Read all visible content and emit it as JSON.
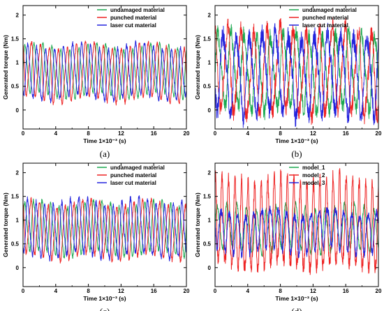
{
  "chart_data": [
    {
      "type": "line",
      "panel_label": "(a)",
      "xlabel": "Time 1×10⁻³ (s)",
      "ylabel": "Generated torque (Nm)",
      "xlim": [
        0,
        20
      ],
      "ylim": [
        -0.4,
        2.2
      ],
      "xticks": [
        0,
        4,
        8,
        12,
        16,
        20
      ],
      "yticks": [
        0,
        0.5,
        1,
        1.5,
        2
      ],
      "xtick_labels": [
        "0",
        "4",
        "8",
        "12",
        "16",
        "20"
      ],
      "ytick_labels": [
        "0",
        "0.5",
        "1",
        "1.5",
        "2"
      ],
      "legend_position": "top-right",
      "grid": false,
      "series": [
        {
          "name": "undamaged material",
          "color": "#1aa84f",
          "mean": 0.82,
          "amplitude": 0.5,
          "period": 1.1,
          "phase": 0.0,
          "noise": 0.03,
          "x": [
            0,
            2,
            4,
            6,
            8,
            10,
            12,
            14,
            16,
            18,
            20
          ],
          "y": [
            0.6,
            1.3,
            0.35,
            1.35,
            0.3,
            1.35,
            0.3,
            1.35,
            0.3,
            1.4,
            0.7
          ]
        },
        {
          "name": "punched material",
          "color": "#ee2222",
          "mean": 0.8,
          "amplitude": 0.55,
          "period": 1.1,
          "phase": 0.35,
          "noise": 0.04,
          "x": [
            0,
            2,
            4,
            6,
            8,
            10,
            12,
            14,
            16,
            18,
            20
          ],
          "y": [
            0.5,
            1.4,
            0.25,
            1.3,
            0.25,
            1.35,
            0.25,
            1.3,
            0.25,
            1.35,
            0.6
          ]
        },
        {
          "name": "laser cut material",
          "color": "#2222dd",
          "mean": 0.78,
          "amplitude": 0.52,
          "period": 1.1,
          "phase": 0.7,
          "noise": 0.05,
          "x": [
            0,
            2,
            4,
            6,
            8,
            10,
            12,
            14,
            16,
            18,
            20
          ],
          "y": [
            0.4,
            1.45,
            0.3,
            1.45,
            0.25,
            1.3,
            0.3,
            1.25,
            0.3,
            1.3,
            0.8
          ]
        }
      ]
    },
    {
      "type": "line",
      "panel_label": "(b)",
      "xlabel": "Time 1×10⁻³ (s)",
      "ylabel": "Generated torque (Nm)",
      "xlim": [
        0,
        20
      ],
      "ylim": [
        -0.4,
        2.2
      ],
      "xticks": [
        0,
        4,
        8,
        12,
        16,
        20
      ],
      "yticks": [
        0,
        0.5,
        1,
        1.5,
        2
      ],
      "xtick_labels": [
        "0",
        "4",
        "8",
        "12",
        "16",
        "20"
      ],
      "ytick_labels": [
        "0",
        "0.5",
        "1",
        "1.5",
        "2"
      ],
      "legend_position": "top-right",
      "grid": false,
      "series": [
        {
          "name": "undamaged material",
          "color": "#1aa84f",
          "mean": 0.8,
          "amplitude": 0.75,
          "period": 1.6,
          "phase": 0.0,
          "noise": 0.18,
          "x": [
            0,
            2,
            4,
            6,
            8,
            10,
            12,
            14,
            16,
            18,
            20
          ],
          "y": [
            0.5,
            1.8,
            0.0,
            1.6,
            0.0,
            1.8,
            0.1,
            1.7,
            0.0,
            1.8,
            0.4
          ]
        },
        {
          "name": "punched material",
          "color": "#ee2222",
          "mean": 0.8,
          "amplitude": 0.85,
          "period": 1.6,
          "phase": 0.3,
          "noise": 0.2,
          "x": [
            0,
            2,
            4,
            6,
            8,
            10,
            12,
            14,
            16,
            18,
            20
          ],
          "y": [
            0.4,
            2.1,
            -0.2,
            1.7,
            -0.2,
            1.9,
            -0.1,
            1.9,
            -0.2,
            1.9,
            0.3
          ]
        },
        {
          "name": "laser cut material",
          "color": "#2222dd",
          "mean": 0.78,
          "amplitude": 0.8,
          "period": 1.6,
          "phase": 0.6,
          "noise": 0.22,
          "x": [
            0,
            2,
            4,
            6,
            8,
            10,
            12,
            14,
            16,
            18,
            20
          ],
          "y": [
            0.3,
            1.9,
            0.0,
            1.5,
            -0.1,
            1.8,
            0.0,
            1.7,
            0.0,
            1.8,
            0.5
          ]
        }
      ]
    },
    {
      "type": "line",
      "panel_label": "(c)",
      "xlabel": "Time 1×10⁻³ (s)",
      "ylabel": "Generated torque (Nm)",
      "xlim": [
        0,
        20
      ],
      "ylim": [
        -0.4,
        2.2
      ],
      "xticks": [
        0,
        4,
        8,
        12,
        16,
        20
      ],
      "yticks": [
        0,
        0.5,
        1,
        1.5,
        2
      ],
      "xtick_labels": [
        "0",
        "4",
        "8",
        "12",
        "16",
        "20"
      ],
      "ytick_labels": [
        "0",
        "0.5",
        "1",
        "1.5",
        "2"
      ],
      "legend_position": "top-right",
      "grid": false,
      "series": [
        {
          "name": "undamaged material",
          "color": "#1aa84f",
          "mean": 0.82,
          "amplitude": 0.5,
          "period": 1.05,
          "phase": 0.0,
          "noise": 0.04,
          "x": [
            0,
            2,
            4,
            6,
            8,
            10,
            12,
            14,
            16,
            18,
            20
          ],
          "y": [
            0.7,
            1.3,
            0.3,
            1.2,
            0.3,
            1.3,
            0.35,
            1.4,
            0.3,
            1.4,
            0.7
          ]
        },
        {
          "name": "punched material",
          "color": "#ee2222",
          "mean": 0.8,
          "amplitude": 0.55,
          "period": 1.05,
          "phase": 0.35,
          "noise": 0.05,
          "x": [
            0,
            2,
            4,
            6,
            8,
            10,
            12,
            14,
            16,
            18,
            20
          ],
          "y": [
            0.6,
            1.35,
            0.2,
            1.2,
            0.2,
            1.35,
            0.25,
            1.4,
            0.2,
            1.5,
            0.5
          ]
        },
        {
          "name": "laser cut material",
          "color": "#2222dd",
          "mean": 0.8,
          "amplitude": 0.55,
          "period": 1.05,
          "phase": 0.7,
          "noise": 0.06,
          "x": [
            0,
            2,
            4,
            6,
            8,
            10,
            12,
            14,
            16,
            18,
            20
          ],
          "y": [
            0.6,
            1.4,
            0.2,
            1.5,
            0.25,
            1.4,
            0.3,
            1.4,
            0.25,
            1.6,
            0.5
          ]
        }
      ]
    },
    {
      "type": "line",
      "panel_label": "(d)",
      "xlabel": "Time 1×10⁻³ (s)",
      "ylabel": "Generated torque (Nm)",
      "xlim": [
        0,
        20
      ],
      "ylim": [
        -0.4,
        2.2
      ],
      "xticks": [
        0,
        4,
        8,
        12,
        16,
        20
      ],
      "yticks": [
        0,
        0.5,
        1,
        1.5,
        2
      ],
      "xtick_labels": [
        "0",
        "4",
        "8",
        "12",
        "16",
        "20"
      ],
      "ytick_labels": [
        "0",
        "0.5",
        "1",
        "1.5",
        "2"
      ],
      "legend_position": "top-right",
      "grid": false,
      "series": [
        {
          "name": "model_1",
          "color": "#1aa84f",
          "mean": 0.82,
          "amplitude": 0.45,
          "period": 1.2,
          "phase": 0.0,
          "noise": 0.05,
          "x": [
            0,
            2,
            4,
            6,
            8,
            10,
            12,
            14,
            16,
            18,
            20
          ],
          "y": [
            0.8,
            1.2,
            0.4,
            1.3,
            0.4,
            1.4,
            0.4,
            1.3,
            0.4,
            1.3,
            0.8
          ]
        },
        {
          "name": "model_2",
          "color": "#ee2222",
          "mean": 0.85,
          "amplitude": 0.9,
          "period": 0.8,
          "phase": 0.2,
          "noise": 0.15,
          "x": [
            0,
            2,
            4,
            6,
            8,
            10,
            12,
            14,
            16,
            18,
            20
          ],
          "y": [
            0.3,
            2.0,
            -0.1,
            1.8,
            -0.1,
            2.0,
            -0.2,
            1.7,
            -0.1,
            1.8,
            0.4
          ]
        },
        {
          "name": "model_3",
          "color": "#2222dd",
          "mean": 0.8,
          "amplitude": 0.4,
          "period": 1.0,
          "phase": 0.5,
          "noise": 0.08,
          "x": [
            0,
            2,
            4,
            6,
            8,
            10,
            12,
            14,
            16,
            18,
            20
          ],
          "y": [
            0.9,
            1.3,
            0.5,
            1.2,
            0.4,
            1.1,
            0.5,
            1.2,
            0.4,
            1.3,
            0.6
          ]
        }
      ]
    }
  ]
}
